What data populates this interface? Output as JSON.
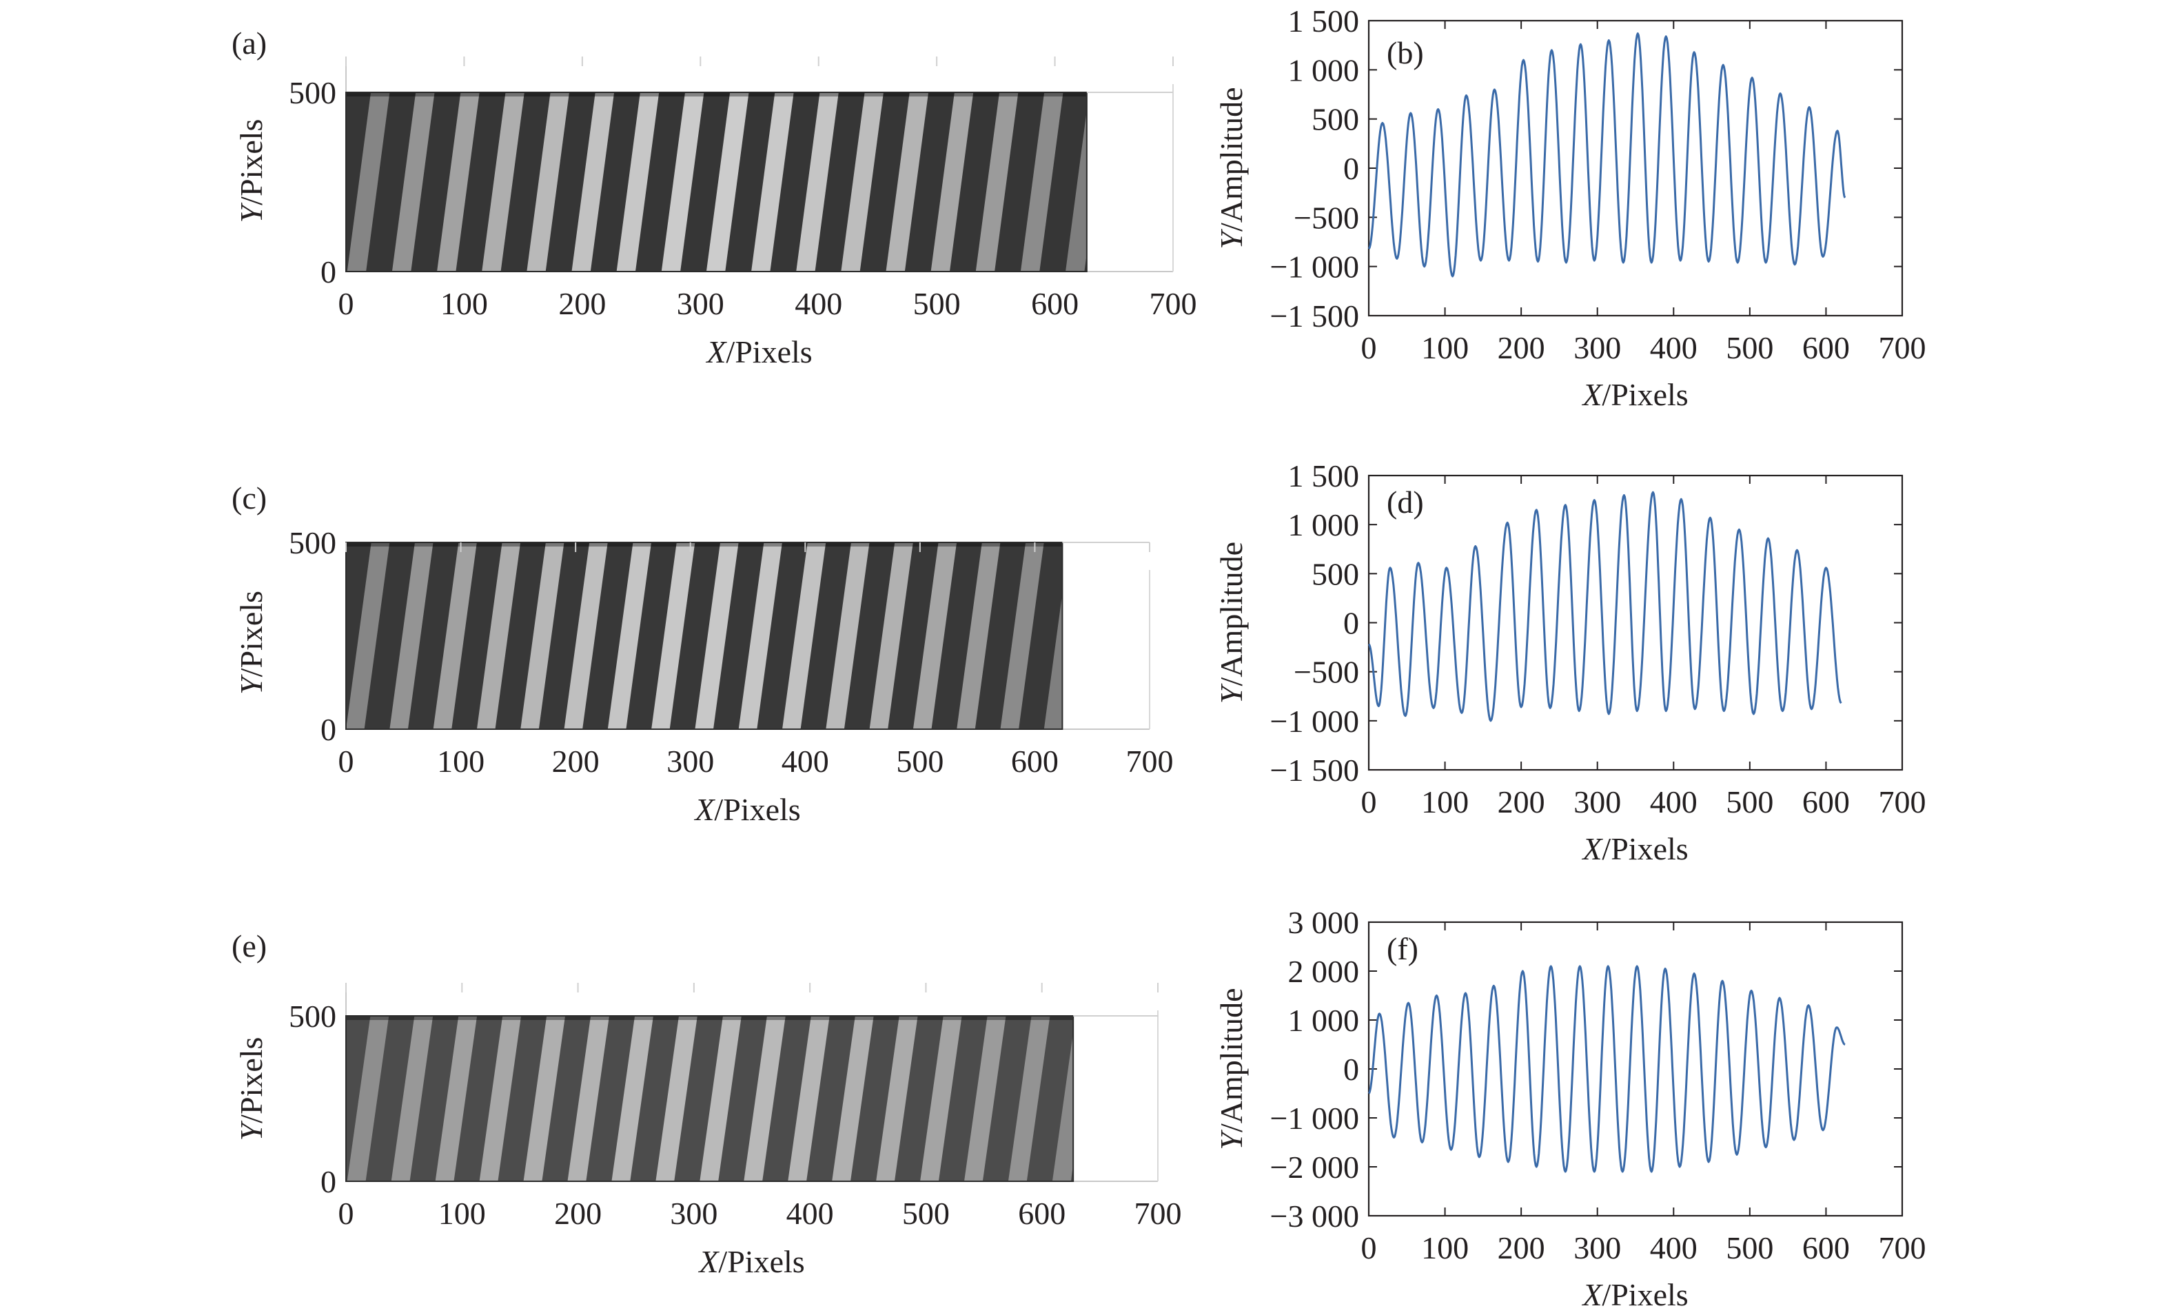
{
  "chart_data": [
    {
      "id": "a",
      "panel_label": "(a)",
      "type": "heatmap",
      "description": "grayscale fringe image",
      "xlabel_italic": "X",
      "xlabel_rest": "/Pixels",
      "ylabel_italic": "Y",
      "ylabel_rest": "/Pixels",
      "xlim": [
        0,
        700
      ],
      "ylim": [
        0,
        600
      ],
      "xticks": [
        "0",
        "100",
        "200",
        "300",
        "400",
        "500",
        "600",
        "700"
      ],
      "yticks": [
        "0",
        "500"
      ],
      "image_extent": {
        "x": [
          0,
          627
        ],
        "y": [
          0,
          500
        ]
      },
      "fringe_period": 38,
      "fringe_tilt": 20,
      "fringe_contrast": 0.85
    },
    {
      "id": "b",
      "panel_label": "(b)",
      "type": "line",
      "xlabel_italic": "X",
      "xlabel_rest": "/Pixels",
      "ylabel_italic": "Y",
      "ylabel_rest": "/Amplitude",
      "xlim": [
        0,
        700
      ],
      "ylim": [
        -1500,
        1500
      ],
      "xticks": [
        "0",
        "100",
        "200",
        "300",
        "400",
        "500",
        "600",
        "700"
      ],
      "yticks": [
        "−1 500",
        "−1 000",
        "−500",
        "0",
        "500",
        "1 000",
        "1 500"
      ],
      "ytick_values": [
        -1500,
        -1000,
        -500,
        0,
        500,
        1000,
        1500
      ],
      "line_color": "#3a6aa8",
      "series": [
        {
          "x_start": 0,
          "x_end": 625,
          "peaks": [
            [
              18,
              460
            ],
            [
              55,
              560
            ],
            [
              91,
              600
            ],
            [
              128,
              740
            ],
            [
              165,
              800
            ],
            [
              203,
              1100
            ],
            [
              240,
              1200
            ],
            [
              278,
              1260
            ],
            [
              315,
              1300
            ],
            [
              353,
              1370
            ],
            [
              390,
              1340
            ],
            [
              427,
              1180
            ],
            [
              465,
              1050
            ],
            [
              503,
              920
            ],
            [
              540,
              760
            ],
            [
              578,
              620
            ],
            [
              615,
              380
            ]
          ],
          "troughs": [
            [
              0,
              -820
            ],
            [
              37,
              -920
            ],
            [
              73,
              -1000
            ],
            [
              110,
              -1100
            ],
            [
              147,
              -940
            ],
            [
              184,
              -940
            ],
            [
              222,
              -950
            ],
            [
              259,
              -960
            ],
            [
              296,
              -940
            ],
            [
              334,
              -960
            ],
            [
              371,
              -960
            ],
            [
              409,
              -940
            ],
            [
              446,
              -950
            ],
            [
              484,
              -960
            ],
            [
              521,
              -960
            ],
            [
              559,
              -980
            ],
            [
              596,
              -900
            ],
            [
              625,
              -300
            ]
          ]
        }
      ]
    },
    {
      "id": "c",
      "panel_label": "(c)",
      "type": "heatmap",
      "description": "grayscale fringe image",
      "xlabel_italic": "X",
      "xlabel_rest": "/Pixels",
      "ylabel_italic": "Y",
      "ylabel_rest": "/Pixels",
      "xlim": [
        0,
        700
      ],
      "ylim": [
        0,
        500
      ],
      "xticks": [
        "0",
        "100",
        "200",
        "300",
        "400",
        "500",
        "600",
        "700"
      ],
      "yticks": [
        "0",
        "500"
      ],
      "image_extent": {
        "x": [
          0,
          624
        ],
        "y": [
          0,
          500
        ]
      },
      "fringe_period": 38,
      "fringe_tilt": 22,
      "fringe_contrast": 0.82
    },
    {
      "id": "d",
      "panel_label": "(d)",
      "type": "line",
      "xlabel_italic": "X",
      "xlabel_rest": "/Pixels",
      "ylabel_italic": "Y",
      "ylabel_rest": "/Amplitude",
      "xlim": [
        0,
        700
      ],
      "ylim": [
        -1500,
        1500
      ],
      "xticks": [
        "0",
        "100",
        "200",
        "300",
        "400",
        "500",
        "600",
        "700"
      ],
      "yticks": [
        "−1 500",
        "−1 000",
        "−500",
        "0",
        "500",
        "1 000",
        "1 500"
      ],
      "ytick_values": [
        -1500,
        -1000,
        -500,
        0,
        500,
        1000,
        1500
      ],
      "line_color": "#3a6aa8",
      "series": [
        {
          "x_start": 0,
          "x_end": 625,
          "peaks": [
            [
              28,
              560
            ],
            [
              65,
              610
            ],
            [
              102,
              560
            ],
            [
              140,
              780
            ],
            [
              182,
              1020
            ],
            [
              220,
              1150
            ],
            [
              258,
              1200
            ],
            [
              296,
              1250
            ],
            [
              335,
              1300
            ],
            [
              373,
              1330
            ],
            [
              410,
              1260
            ],
            [
              448,
              1070
            ],
            [
              486,
              950
            ],
            [
              524,
              860
            ],
            [
              562,
              740
            ],
            [
              600,
              560
            ]
          ],
          "troughs": [
            [
              0,
              -220
            ],
            [
              13,
              -850
            ],
            [
              48,
              -950
            ],
            [
              85,
              -870
            ],
            [
              122,
              -920
            ],
            [
              160,
              -1000
            ],
            [
              200,
              -860
            ],
            [
              238,
              -870
            ],
            [
              276,
              -900
            ],
            [
              315,
              -930
            ],
            [
              352,
              -900
            ],
            [
              390,
              -900
            ],
            [
              428,
              -880
            ],
            [
              466,
              -900
            ],
            [
              505,
              -930
            ],
            [
              543,
              -900
            ],
            [
              581,
              -880
            ],
            [
              620,
              -820
            ]
          ]
        }
      ]
    },
    {
      "id": "e",
      "panel_label": "(e)",
      "type": "heatmap",
      "description": "grayscale fringe image",
      "xlabel_italic": "X",
      "xlabel_rest": "/Pixels",
      "ylabel_italic": "Y",
      "ylabel_rest": "/Pixels",
      "xlim": [
        0,
        700
      ],
      "ylim": [
        0,
        600
      ],
      "xticks": [
        "0",
        "100",
        "200",
        "300",
        "400",
        "500",
        "600",
        "700"
      ],
      "yticks": [
        "0",
        "500"
      ],
      "image_extent": {
        "x": [
          0,
          627
        ],
        "y": [
          0,
          500
        ]
      },
      "fringe_period": 38,
      "fringe_tilt": 20,
      "fringe_contrast": 0.6
    },
    {
      "id": "f",
      "panel_label": "(f)",
      "type": "line",
      "xlabel_italic": "X",
      "xlabel_rest": "/Pixels",
      "ylabel_italic": "Y",
      "ylabel_rest": "/Amplitude",
      "xlim": [
        0,
        700
      ],
      "ylim": [
        -3000,
        3000
      ],
      "xticks": [
        "0",
        "100",
        "200",
        "300",
        "400",
        "500",
        "600",
        "700"
      ],
      "yticks": [
        "−3 000",
        "−2 000",
        "−1 000",
        "0",
        "1 000",
        "2 000",
        "3 000"
      ],
      "ytick_values": [
        -3000,
        -2000,
        -1000,
        0,
        1000,
        2000,
        3000
      ],
      "line_color": "#3a6aa8",
      "series": [
        {
          "x_start": 0,
          "x_end": 625,
          "peaks": [
            [
              14,
              1130
            ],
            [
              52,
              1350
            ],
            [
              89,
              1500
            ],
            [
              127,
              1550
            ],
            [
              164,
              1700
            ],
            [
              202,
              2000
            ],
            [
              239,
              2100
            ],
            [
              277,
              2100
            ],
            [
              314,
              2100
            ],
            [
              352,
              2100
            ],
            [
              389,
              2050
            ],
            [
              427,
              1950
            ],
            [
              464,
              1800
            ],
            [
              502,
              1600
            ],
            [
              539,
              1450
            ],
            [
              577,
              1300
            ],
            [
              614,
              850
            ]
          ],
          "troughs": [
            [
              0,
              -500
            ],
            [
              33,
              -1400
            ],
            [
              70,
              -1500
            ],
            [
              108,
              -1650
            ],
            [
              145,
              -1800
            ],
            [
              183,
              -1900
            ],
            [
              220,
              -2000
            ],
            [
              258,
              -2100
            ],
            [
              296,
              -2100
            ],
            [
              333,
              -2100
            ],
            [
              371,
              -2100
            ],
            [
              408,
              -2000
            ],
            [
              446,
              -1900
            ],
            [
              483,
              -1750
            ],
            [
              521,
              -1600
            ],
            [
              558,
              -1450
            ],
            [
              596,
              -1250
            ],
            [
              625,
              500
            ]
          ]
        }
      ]
    }
  ]
}
